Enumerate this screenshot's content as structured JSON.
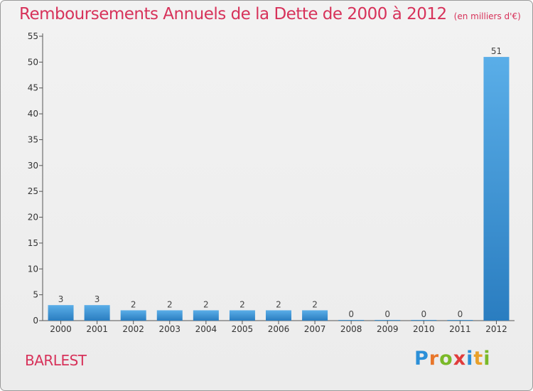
{
  "chart_data": {
    "type": "bar",
    "title": "Remboursements Annuels de la Dette de 2000 à 2012",
    "subtitle": "(en milliers d'€)",
    "categories": [
      "2000",
      "2001",
      "2002",
      "2003",
      "2004",
      "2005",
      "2006",
      "2007",
      "2008",
      "2009",
      "2010",
      "2011",
      "2012"
    ],
    "values": [
      3,
      3,
      2,
      2,
      2,
      2,
      2,
      2,
      0,
      0,
      0,
      0,
      51
    ],
    "value_labels": [
      "3",
      "3",
      "2",
      "2",
      "2",
      "2",
      "2",
      "2",
      "0",
      "0",
      "0",
      "0",
      "51"
    ],
    "ylim": [
      0,
      55
    ],
    "yticks": [
      0,
      5,
      10,
      15,
      20,
      25,
      30,
      35,
      40,
      45,
      50,
      55
    ],
    "xlabel": "",
    "ylabel": "",
    "bar_color_top": "#5aaee8",
    "bar_color_bottom": "#2a7dc0"
  },
  "footer": {
    "commune": "BARLEST",
    "brand_letters": [
      "P",
      "r",
      "o",
      "x",
      "i",
      "t",
      "i"
    ],
    "brand_colors": [
      "#2b8fd8",
      "#e8762a",
      "#7ab928",
      "#e03c3c",
      "#2b8fd8",
      "#e8a02a",
      "#7ab928"
    ]
  }
}
